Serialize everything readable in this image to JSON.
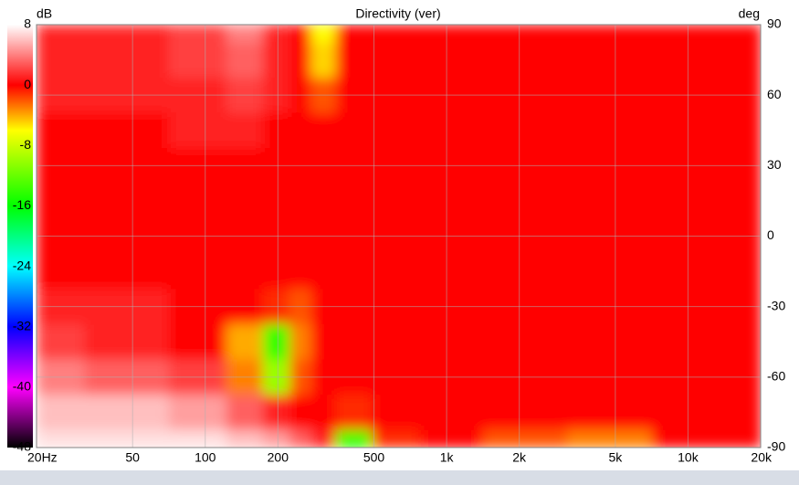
{
  "chart_data": {
    "type": "heatmap",
    "title": "Directivity (ver)",
    "z_label": "dB",
    "y_label": "deg",
    "x": [
      20,
      50,
      100,
      150,
      200,
      250,
      300,
      400,
      600,
      1000,
      2000,
      5000,
      10000,
      20000
    ],
    "y": [
      90,
      75,
      60,
      45,
      30,
      15,
      0,
      -15,
      -30,
      -45,
      -60,
      -75,
      -90
    ],
    "z": [
      [
        1,
        1,
        2,
        4,
        1,
        0,
        -6,
        0,
        0,
        0,
        0,
        0,
        0,
        0
      ],
      [
        1,
        1,
        2,
        3,
        1,
        0,
        -5,
        0,
        0,
        0,
        0,
        0,
        0,
        0
      ],
      [
        1,
        1,
        1,
        2,
        1,
        0,
        -2,
        0,
        0,
        0,
        0,
        0,
        0,
        0
      ],
      [
        0,
        0,
        1,
        1,
        0,
        0,
        0,
        0,
        0,
        0,
        0,
        0,
        0,
        0
      ],
      [
        0,
        0,
        0,
        0,
        0,
        0,
        0,
        0,
        0,
        0,
        0,
        0,
        0,
        0
      ],
      [
        0,
        0,
        0,
        0,
        0,
        0,
        0,
        0,
        0,
        0,
        0,
        0,
        0,
        0
      ],
      [
        0,
        0,
        0,
        0,
        0,
        0,
        0,
        0,
        0,
        0,
        0,
        0,
        0,
        0
      ],
      [
        0,
        0,
        0,
        0,
        0,
        0,
        0,
        0,
        0,
        0,
        0,
        0,
        0,
        0
      ],
      [
        1,
        1,
        0,
        0,
        -1,
        -2,
        0,
        0,
        0,
        0,
        0,
        0,
        0,
        0
      ],
      [
        2,
        1,
        0,
        -4,
        -14,
        -3,
        0,
        0,
        0,
        0,
        0,
        0,
        0,
        0
      ],
      [
        4,
        3,
        2,
        -3,
        -10,
        -2,
        0,
        0,
        0,
        0,
        0,
        0,
        0,
        0
      ],
      [
        6,
        6,
        5,
        3,
        1,
        0,
        0,
        -1,
        0,
        0,
        0,
        0,
        0,
        0
      ],
      [
        7,
        7,
        7,
        6,
        5,
        3,
        1,
        -14,
        -1,
        0,
        -2,
        -3,
        0,
        0
      ]
    ],
    "xlim": [
      20,
      20000
    ],
    "x_log": true,
    "xticks": [
      {
        "value": 20,
        "label": "20Hz"
      },
      50,
      100,
      200,
      500,
      {
        "value": 1000,
        "label": "1k"
      },
      {
        "value": 2000,
        "label": "2k"
      },
      {
        "value": 5000,
        "label": "5k"
      },
      {
        "value": 10000,
        "label": "10k"
      },
      {
        "value": 20000,
        "label": "20k"
      }
    ],
    "ylim": [
      -90,
      90
    ],
    "yticks": [
      90,
      60,
      30,
      0,
      -30,
      -60,
      -90
    ],
    "zlim": [
      -48,
      8
    ],
    "zticks": [
      8,
      0,
      -8,
      -16,
      -24,
      -32,
      -40,
      -48
    ],
    "colorscale": [
      [
        8,
        "#ffffff"
      ],
      [
        0,
        "#ff0000"
      ],
      [
        -6,
        "#ffff00"
      ],
      [
        -16,
        "#00ff00"
      ],
      [
        -24,
        "#00ffff"
      ],
      [
        -32,
        "#0000ff"
      ],
      [
        -40,
        "#ff00ff"
      ],
      [
        -48,
        "#000000"
      ]
    ],
    "grid": true
  }
}
